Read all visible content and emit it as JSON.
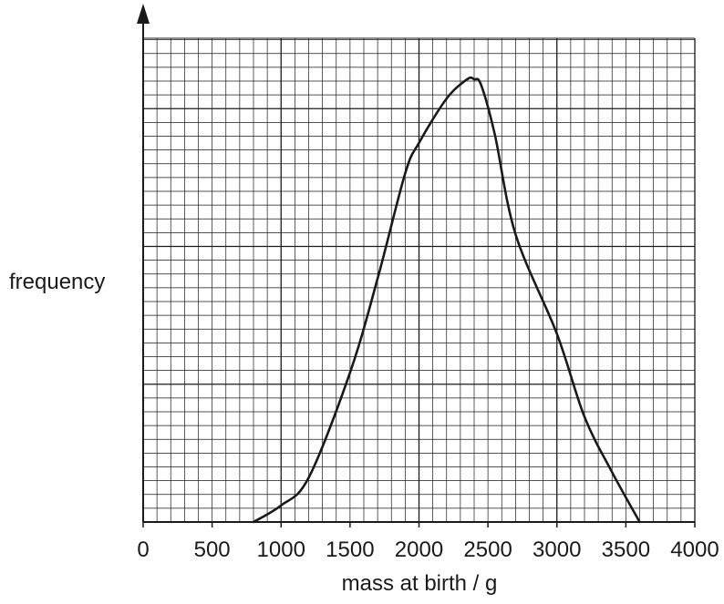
{
  "chart_data": {
    "type": "line",
    "title": "",
    "xlabel": "mass at birth / g",
    "ylabel": "frequency",
    "xlim": [
      0,
      4000
    ],
    "xticks": [
      0,
      500,
      1000,
      1500,
      2000,
      2500,
      3000,
      3500,
      4000
    ],
    "x_tick_labels": [
      "0",
      "500",
      "1000",
      "1500",
      "2000",
      "2500",
      "3000",
      "3500",
      "4000"
    ],
    "ylim": [
      0,
      32
    ],
    "grid": true,
    "y_tick_labels_shown": false,
    "series": [
      {
        "x": [
          800,
          1000,
          1200,
          1500,
          1700,
          1900,
          2000,
          2200,
          2350,
          2400,
          2450,
          2550,
          2700,
          3000,
          3200,
          3400,
          3600
        ],
        "y": [
          0,
          1.2,
          3.2,
          10.8,
          17.6,
          25.2,
          27.4,
          30.6,
          32,
          32,
          31.6,
          28,
          20.8,
          13.6,
          7.6,
          3.6,
          0
        ]
      }
    ]
  }
}
